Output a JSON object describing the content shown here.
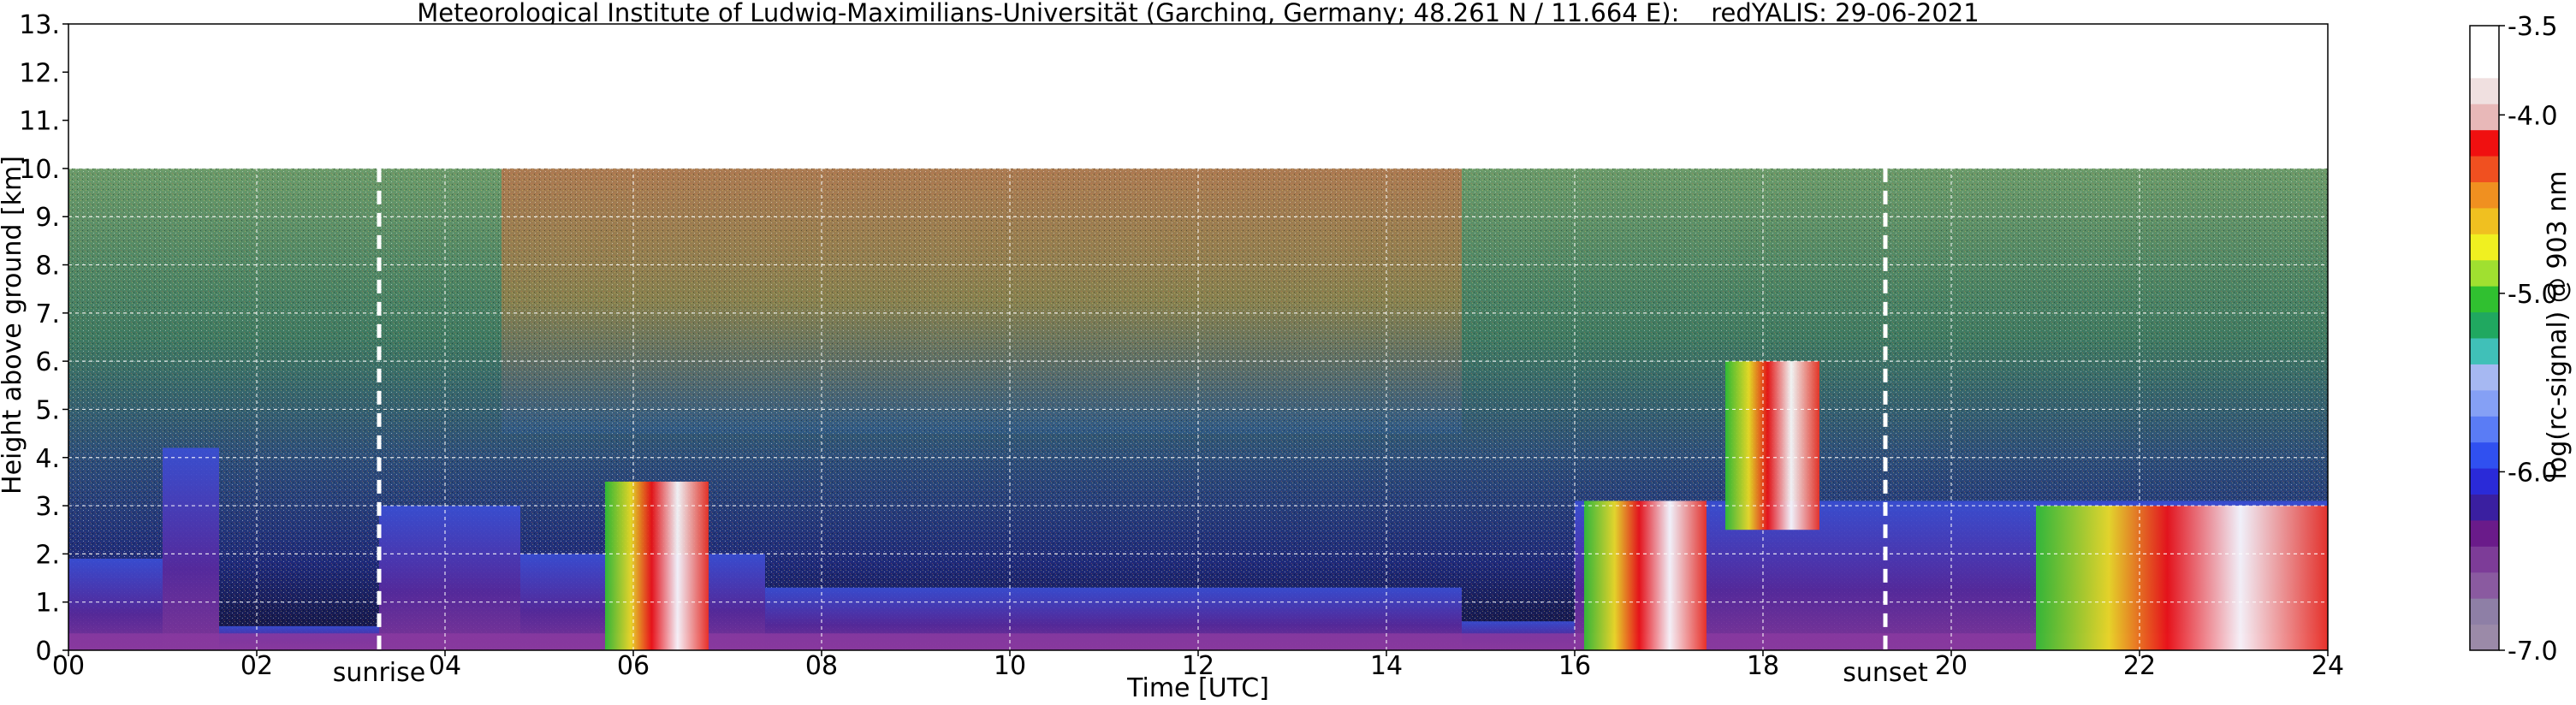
{
  "chart_data": {
    "type": "heatmap",
    "title": "Meteorological Institute of Ludwig-Maximilians-Universität (Garching, Germany; 48.261 N / 11.664 E):    redYALIS: 29-06-2021",
    "xlabel": "Time [UTC]",
    "ylabel": "Height above ground [km]",
    "colorbar_label": "log(rc-signal) @ 903 nm",
    "xlim": [
      0,
      24
    ],
    "ylim": [
      0,
      13
    ],
    "clim": [
      -7.0,
      -3.5
    ],
    "grid": true,
    "x_ticks": [
      "00",
      "02",
      "04",
      "06",
      "08",
      "10",
      "12",
      "14",
      "16",
      "18",
      "20",
      "22",
      "24"
    ],
    "y_ticks": [
      "0.",
      "1.",
      "2.",
      "3.",
      "4.",
      "5.",
      "6.",
      "7.",
      "8.",
      "9.",
      "10.",
      "11.",
      "12.",
      "13."
    ],
    "colorbar_ticks": [
      "-3.5",
      "-4.0",
      "-5.0",
      "-6.0",
      "-7.0"
    ],
    "colorbar_values": [
      -3.5,
      -4.0,
      -5.0,
      -6.0,
      -7.0
    ],
    "events": [
      {
        "label": "sunrise",
        "x": 3.3
      },
      {
        "label": "sunset",
        "x": 19.3
      }
    ],
    "data_top_km": 10,
    "features": {
      "boundary_layer": [
        {
          "x0": 0.0,
          "x1": 1.0,
          "y0": 0.0,
          "y1": 1.9
        },
        {
          "x0": 1.0,
          "x1": 1.6,
          "y0": 0.0,
          "y1": 4.2
        },
        {
          "x0": 1.6,
          "x1": 3.3,
          "y0": 0.0,
          "y1": 0.5
        },
        {
          "x0": 3.3,
          "x1": 4.8,
          "y0": 0.0,
          "y1": 3.0
        },
        {
          "x0": 4.8,
          "x1": 7.4,
          "y0": 0.0,
          "y1": 2.0
        },
        {
          "x0": 7.4,
          "x1": 14.8,
          "y0": 0.0,
          "y1": 1.3
        },
        {
          "x0": 14.8,
          "x1": 16.0,
          "y0": 0.0,
          "y1": 0.6
        },
        {
          "x0": 16.0,
          "x1": 20.8,
          "y0": 0.0,
          "y1": 3.1
        },
        {
          "x0": 20.8,
          "x1": 24.0,
          "y0": 0.0,
          "y1": 3.1
        }
      ],
      "clouds": [
        {
          "x0": 5.7,
          "x1": 6.8,
          "y0": 0.0,
          "y1": 3.5
        },
        {
          "x0": 16.1,
          "x1": 17.4,
          "y0": 0.0,
          "y1": 3.1
        },
        {
          "x0": 17.6,
          "x1": 18.6,
          "y0": 2.5,
          "y1": 6.0
        },
        {
          "x0": 20.9,
          "x1": 24.0,
          "y0": 0.0,
          "y1": 3.0
        }
      ]
    },
    "colors": {
      "colormap": [
        "#9b8aa8",
        "#8e7fa6",
        "#8a5aa0",
        "#7d3c98",
        "#6a1b8a",
        "#3a1fa0",
        "#2a2ad8",
        "#3050f0",
        "#5a7cf5",
        "#85a0f5",
        "#a6b8f2",
        "#40c0b8",
        "#20a860",
        "#30c030",
        "#a0e030",
        "#f0f020",
        "#f0c020",
        "#f09020",
        "#f05020",
        "#f01010",
        "#e8b8b8",
        "#f0e0e0",
        "#ffffff",
        "#ffffff"
      ]
    }
  }
}
